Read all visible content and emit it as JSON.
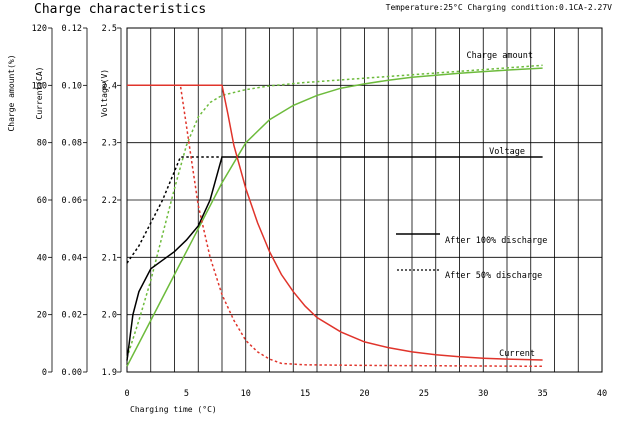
{
  "chart_data": {
    "type": "line",
    "title": "Charge characteristics",
    "subtitle": "Temperature:25°C Charging condition:0.1CA-2.27V",
    "xlabel": "Charging time (°C)",
    "xlim": [
      0,
      40
    ],
    "x_ticks": [
      "0",
      "5",
      "10",
      "15",
      "20",
      "25",
      "30",
      "35",
      "40"
    ],
    "axes": {
      "charge_amount": {
        "label": "Charge amount(%)",
        "ylim": [
          0,
          120
        ],
        "ticks": [
          "0",
          "20",
          "40",
          "60",
          "80",
          "100",
          "120"
        ]
      },
      "current": {
        "label": "Current(CA)",
        "ylim": [
          0,
          0.12
        ],
        "ticks": [
          "0.00",
          "0.02",
          "0.04",
          "0.06",
          "0.08",
          "0.10",
          "0.12"
        ]
      },
      "voltage": {
        "label": "Voltage(V)",
        "ylim": [
          1.9,
          2.5
        ],
        "ticks": [
          "1.9",
          "2.0",
          "2.1",
          "2.2",
          "2.3",
          "2.4",
          "2.5"
        ]
      }
    },
    "grid": true,
    "series": [
      {
        "name": "Charge amount",
        "axis": "charge_amount",
        "condition": "after_100",
        "color": "#6dbb3c",
        "x": [
          0,
          2,
          4,
          6,
          8,
          10,
          12,
          14,
          16,
          18,
          20,
          22,
          24,
          26,
          28,
          30,
          32,
          35
        ],
        "y": [
          2,
          18,
          34,
          50,
          66,
          80,
          88,
          93,
          96.5,
          99,
          100.5,
          101.8,
          102.8,
          103.5,
          104.2,
          104.8,
          105.3,
          106
        ]
      },
      {
        "name": "Charge amount",
        "axis": "charge_amount",
        "condition": "after_50",
        "color": "#6dbb3c",
        "x": [
          0,
          1,
          2,
          3,
          4,
          5,
          6,
          7,
          8,
          10,
          12,
          15,
          20,
          25,
          30,
          35
        ],
        "y": [
          5,
          18,
          32,
          48,
          64,
          79,
          89,
          94,
          96.5,
          98.5,
          99.8,
          101,
          102.5,
          104,
          105.5,
          107
        ]
      },
      {
        "name": "Voltage",
        "axis": "voltage",
        "condition": "after_100",
        "color": "#000000",
        "x": [
          0,
          0.5,
          1,
          2,
          3,
          4,
          5,
          6,
          7,
          7.8,
          8,
          35
        ],
        "y": [
          1.92,
          2.0,
          2.04,
          2.08,
          2.095,
          2.11,
          2.13,
          2.155,
          2.2,
          2.26,
          2.275,
          2.275
        ]
      },
      {
        "name": "Voltage",
        "axis": "voltage",
        "condition": "after_50",
        "color": "#000000",
        "x": [
          0,
          1,
          2,
          3,
          4,
          4.5,
          8
        ],
        "y": [
          2.09,
          2.12,
          2.16,
          2.2,
          2.25,
          2.275,
          2.275
        ]
      },
      {
        "name": "Current",
        "axis": "current",
        "condition": "after_100",
        "color": "#e0342b",
        "x": [
          0,
          8,
          8.5,
          9,
          10,
          11,
          12,
          13,
          14,
          15,
          16,
          18,
          20,
          22,
          24,
          26,
          28,
          30,
          32,
          35
        ],
        "y": [
          0.1,
          0.1,
          0.09,
          0.079,
          0.064,
          0.052,
          0.042,
          0.034,
          0.028,
          0.023,
          0.019,
          0.014,
          0.0105,
          0.0085,
          0.007,
          0.006,
          0.0053,
          0.0048,
          0.0045,
          0.0042
        ]
      },
      {
        "name": "Current",
        "axis": "current",
        "condition": "after_50",
        "color": "#e0342b",
        "x": [
          0,
          4.5,
          5,
          5.5,
          6,
          7,
          8,
          9,
          10,
          11,
          12,
          13,
          15,
          20,
          25,
          30,
          35
        ],
        "y": [
          0.1,
          0.1,
          0.086,
          0.072,
          0.058,
          0.04,
          0.027,
          0.018,
          0.011,
          0.007,
          0.0045,
          0.003,
          0.0025,
          0.0023,
          0.0022,
          0.0021,
          0.002
        ]
      }
    ],
    "annotations": [
      {
        "id": "charge_amount",
        "text": "Charge amount"
      },
      {
        "id": "voltage",
        "text": "Voltage"
      },
      {
        "id": "current",
        "text": "Current"
      },
      {
        "id": "legend_100",
        "text": "After 100% discharge"
      },
      {
        "id": "legend_50",
        "text": "After 50% discharge"
      }
    ]
  }
}
